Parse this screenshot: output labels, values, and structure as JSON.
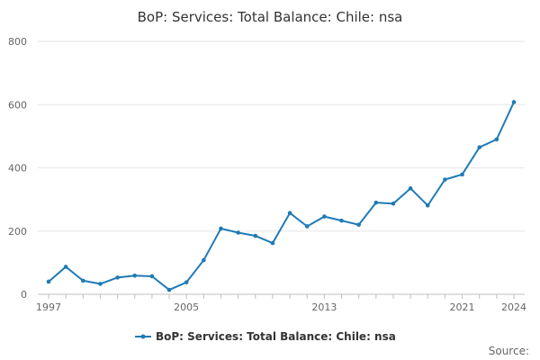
{
  "chart_data": {
    "type": "line",
    "title": "BoP: Services: Total Balance: Chile: nsa",
    "xlabel": "",
    "ylabel": "",
    "x": [
      1997,
      1998,
      1999,
      2000,
      2001,
      2002,
      2003,
      2004,
      2005,
      2006,
      2007,
      2008,
      2009,
      2010,
      2011,
      2012,
      2013,
      2014,
      2015,
      2016,
      2017,
      2018,
      2019,
      2020,
      2021,
      2022,
      2023,
      2024
    ],
    "series": [
      {
        "name": "BoP: Services: Total Balance: Chile: nsa",
        "color": "#1f7bb6",
        "values": [
          40,
          87,
          43,
          33,
          53,
          59,
          57,
          14,
          38,
          108,
          208,
          195,
          185,
          162,
          257,
          215,
          246,
          233,
          220,
          290,
          287,
          335,
          281,
          363,
          379,
          465,
          490,
          608
        ]
      }
    ],
    "xlim": [
      1997,
      2024
    ],
    "ylim": [
      0,
      800
    ],
    "x_ticks": [
      "1997",
      "2005",
      "2013",
      "2021",
      "2024"
    ],
    "y_ticks": [
      "0",
      "200",
      "400",
      "600",
      "800"
    ],
    "grid": true,
    "legend": "bottom-center"
  },
  "source_label": "Source:"
}
